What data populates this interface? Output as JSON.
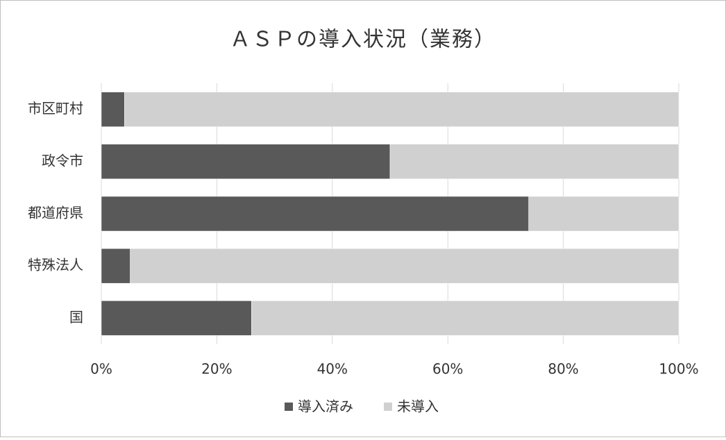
{
  "chart_data": {
    "type": "stacked_bar_horizontal",
    "title": "ＡＳＰの導入状況（業務）",
    "categories": [
      "市区町村",
      "政令市",
      "都道府県",
      "特殊法人",
      "国"
    ],
    "series": [
      {
        "name": "導入済み",
        "color": "#595959",
        "values": [
          4,
          50,
          74,
          5,
          26
        ]
      },
      {
        "name": "未導入",
        "color": "#d0d0d0",
        "values": [
          96,
          50,
          26,
          95,
          74
        ]
      }
    ],
    "xlim": [
      0,
      100
    ],
    "xticks": [
      {
        "value": 0,
        "label": "0%"
      },
      {
        "value": 20,
        "label": "20%"
      },
      {
        "value": 40,
        "label": "40%"
      },
      {
        "value": 60,
        "label": "60%"
      },
      {
        "value": 80,
        "label": "80%"
      },
      {
        "value": 100,
        "label": "100%"
      }
    ],
    "grid": true,
    "legend": "bottom"
  }
}
